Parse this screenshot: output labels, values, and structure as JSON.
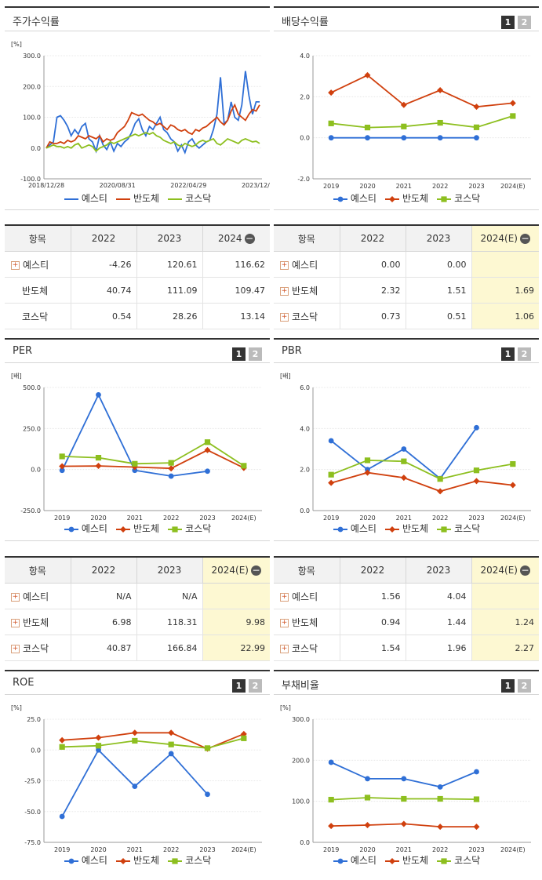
{
  "colors": {
    "yes": "#2f6fd6",
    "ban": "#d0400e",
    "kos": "#8dbf1f"
  },
  "icons": {
    "expand": "plus-icon",
    "collapse": "minus-icon"
  },
  "pager": {
    "p1": "1",
    "p2": "2"
  },
  "series_names": [
    "예스티",
    "반도체",
    "코스닥"
  ],
  "panels": {
    "p1": {
      "title": "주가수익률"
    },
    "p2": {
      "title": "배당수익률"
    },
    "p3": {
      "title": "PER"
    },
    "p4": {
      "title": "PBR"
    },
    "p5": {
      "title": "ROE"
    },
    "p6": {
      "title": "부채비율"
    }
  },
  "tables": {
    "t1": {
      "head": [
        "항목",
        "2022",
        "2023",
        "2024"
      ],
      "rows": [
        [
          "예스티",
          "-4.26",
          "120.61",
          "116.62"
        ],
        [
          "반도체",
          "40.74",
          "111.09",
          "109.47"
        ],
        [
          "코스닥",
          "0.54",
          "28.26",
          "13.14"
        ]
      ]
    },
    "t2": {
      "head": [
        "항목",
        "2022",
        "2023",
        "2024(E)"
      ],
      "rows": [
        [
          "예스티",
          "0.00",
          "0.00",
          ""
        ],
        [
          "반도체",
          "2.32",
          "1.51",
          "1.69"
        ],
        [
          "코스닥",
          "0.73",
          "0.51",
          "1.06"
        ]
      ]
    },
    "t3": {
      "head": [
        "항목",
        "2022",
        "2023",
        "2024(E)"
      ],
      "rows": [
        [
          "예스티",
          "N/A",
          "N/A",
          ""
        ],
        [
          "반도체",
          "6.98",
          "118.31",
          "9.98"
        ],
        [
          "코스닥",
          "40.87",
          "166.84",
          "22.99"
        ]
      ]
    },
    "t4": {
      "head": [
        "항목",
        "2022",
        "2023",
        "2024(E)"
      ],
      "rows": [
        [
          "예스티",
          "1.56",
          "4.04",
          ""
        ],
        [
          "반도체",
          "0.94",
          "1.44",
          "1.24"
        ],
        [
          "코스닥",
          "1.54",
          "1.96",
          "2.27"
        ]
      ]
    }
  },
  "chart_data": [
    {
      "id": "c1",
      "type": "line",
      "title": "주가수익률",
      "ylabel": "[%]",
      "ylim": [
        -100,
        300
      ],
      "yticks": [
        "-100.0",
        "0.0",
        "100.0",
        "200.0",
        "300.0"
      ],
      "xticks": [
        "2018/12/28",
        "2020/08/31",
        "2022/04/29",
        "2023/12/28"
      ],
      "series": [
        {
          "name": "예스티",
          "values": [
            0,
            10,
            20,
            100,
            105,
            90,
            70,
            40,
            60,
            45,
            70,
            80,
            30,
            20,
            -10,
            40,
            10,
            -5,
            20,
            -10,
            15,
            5,
            20,
            30,
            50,
            80,
            95,
            60,
            40,
            70,
            60,
            80,
            100,
            60,
            50,
            30,
            20,
            -10,
            10,
            -15,
            20,
            30,
            10,
            0,
            10,
            20,
            25,
            60,
            110,
            230,
            80,
            90,
            150,
            100,
            90,
            140,
            250,
            170,
            110,
            150,
            150
          ]
        },
        {
          "name": "반도체",
          "values": [
            0,
            20,
            15,
            15,
            20,
            15,
            25,
            20,
            25,
            40,
            35,
            30,
            40,
            35,
            30,
            40,
            20,
            30,
            25,
            30,
            50,
            60,
            70,
            90,
            115,
            110,
            105,
            110,
            100,
            90,
            85,
            75,
            80,
            70,
            60,
            75,
            70,
            60,
            55,
            60,
            50,
            45,
            60,
            55,
            65,
            70,
            80,
            90,
            100,
            85,
            75,
            90,
            120,
            140,
            110,
            100,
            90,
            110,
            125,
            120,
            140
          ]
        },
        {
          "name": "코스닥",
          "values": [
            0,
            5,
            10,
            5,
            5,
            0,
            5,
            0,
            10,
            15,
            0,
            5,
            10,
            5,
            -10,
            0,
            5,
            10,
            20,
            15,
            20,
            25,
            30,
            35,
            40,
            45,
            40,
            45,
            50,
            45,
            50,
            40,
            35,
            25,
            20,
            15,
            20,
            10,
            5,
            15,
            10,
            5,
            10,
            20,
            25,
            20,
            25,
            30,
            15,
            10,
            20,
            30,
            25,
            20,
            15,
            25,
            30,
            25,
            20,
            22,
            15
          ]
        }
      ]
    },
    {
      "id": "c2",
      "type": "line",
      "title": "배당수익률",
      "ylabel": "",
      "ylim": [
        -2,
        4
      ],
      "yticks": [
        "-2.0",
        "0.0",
        "2.0",
        "4.0"
      ],
      "categories": [
        "2019",
        "2020",
        "2021",
        "2022",
        "2023",
        "2024(E)"
      ],
      "series": [
        {
          "name": "예스티",
          "values": [
            0,
            0,
            0,
            0,
            0,
            null
          ]
        },
        {
          "name": "반도체",
          "values": [
            2.2,
            3.05,
            1.6,
            2.32,
            1.51,
            1.69
          ]
        },
        {
          "name": "코스닥",
          "values": [
            0.7,
            0.5,
            0.55,
            0.73,
            0.51,
            1.06
          ]
        }
      ]
    },
    {
      "id": "c3",
      "type": "line",
      "title": "PER",
      "ylabel": "[배]",
      "ylim": [
        -250,
        500
      ],
      "yticks": [
        "-250.0",
        "0.0",
        "250.0",
        "500.0"
      ],
      "categories": [
        "2019",
        "2020",
        "2021",
        "2022",
        "2023",
        "2024(E)"
      ],
      "series": [
        {
          "name": "예스티",
          "values": [
            -5,
            455,
            -5,
            -40,
            -10,
            null
          ]
        },
        {
          "name": "반도체",
          "values": [
            20,
            22,
            15,
            6.98,
            118.31,
            9.98
          ]
        },
        {
          "name": "코스닥",
          "values": [
            80,
            72,
            35,
            40.87,
            166.84,
            22.99
          ]
        }
      ]
    },
    {
      "id": "c4",
      "type": "line",
      "title": "PBR",
      "ylabel": "[배]",
      "ylim": [
        0,
        6
      ],
      "yticks": [
        "0.0",
        "2.0",
        "4.0",
        "6.0"
      ],
      "categories": [
        "2019",
        "2020",
        "2021",
        "2022",
        "2023",
        "2024(E)"
      ],
      "series": [
        {
          "name": "예스티",
          "values": [
            3.4,
            2.0,
            3.0,
            1.56,
            4.04,
            null
          ]
        },
        {
          "name": "반도체",
          "values": [
            1.35,
            1.85,
            1.6,
            0.94,
            1.44,
            1.24
          ]
        },
        {
          "name": "코스닥",
          "values": [
            1.75,
            2.45,
            2.4,
            1.54,
            1.96,
            2.27
          ]
        }
      ]
    },
    {
      "id": "c5",
      "type": "line",
      "title": "ROE",
      "ylabel": "[%]",
      "ylim": [
        -75,
        25
      ],
      "yticks": [
        "-75.0",
        "-50.0",
        "-25.0",
        "0.0",
        "25.0"
      ],
      "categories": [
        "2019",
        "2020",
        "2021",
        "2022",
        "2023",
        "2024(E)"
      ],
      "series": [
        {
          "name": "예스티",
          "values": [
            -54,
            0,
            -29.5,
            -3,
            -36,
            null
          ]
        },
        {
          "name": "반도체",
          "values": [
            8,
            10,
            14,
            14,
            1,
            13
          ]
        },
        {
          "name": "코스닥",
          "values": [
            2.5,
            3.5,
            7.5,
            4.5,
            1.5,
            9.5
          ]
        }
      ]
    },
    {
      "id": "c6",
      "type": "line",
      "title": "부채비율",
      "ylabel": "[%]",
      "ylim": [
        0,
        300
      ],
      "yticks": [
        "0.0",
        "100.0",
        "200.0",
        "300.0"
      ],
      "categories": [
        "2019",
        "2020",
        "2021",
        "2022",
        "2023",
        "2024(E)"
      ],
      "series": [
        {
          "name": "예스티",
          "values": [
            195,
            155,
            155,
            135,
            172,
            null
          ]
        },
        {
          "name": "반도체",
          "values": [
            40,
            42,
            45,
            38,
            38,
            null
          ]
        },
        {
          "name": "코스닥",
          "values": [
            104,
            109,
            106,
            106,
            105,
            null
          ]
        }
      ]
    }
  ]
}
